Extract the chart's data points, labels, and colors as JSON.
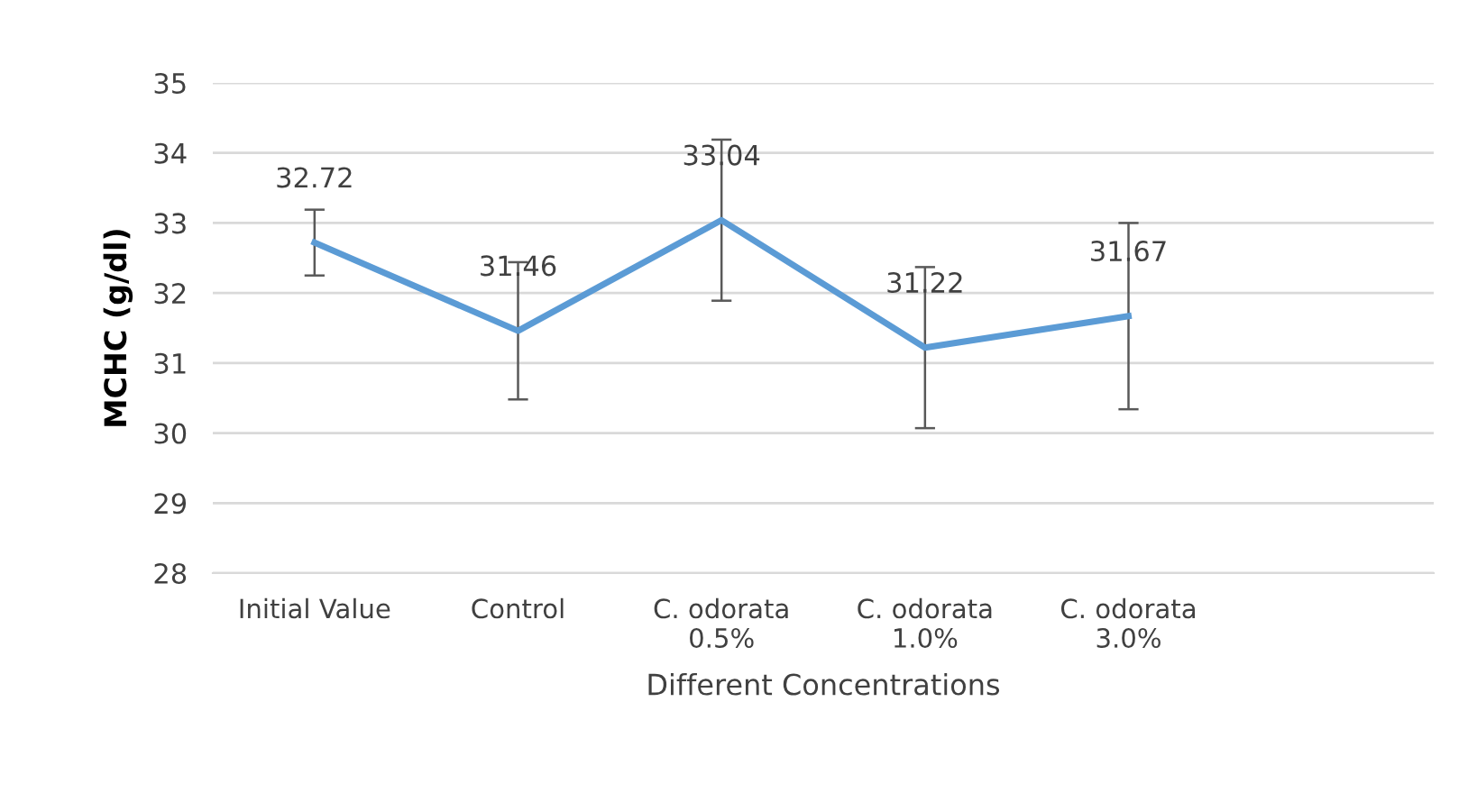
{
  "chart_data": {
    "type": "line",
    "xlabel": "Different Concentrations",
    "ylabel": "MCHC (g/dl)",
    "categories": [
      "Initial Value",
      "Control",
      "C. odorata\n0.5%",
      "C. odorata\n1.0%",
      "C. odorata\n3.0%",
      null
    ],
    "series": [
      {
        "color": "#5b9bd5",
        "values": [
          32.72,
          31.46,
          33.04,
          31.22,
          31.67,
          null
        ],
        "errors": [
          0.47,
          0.98,
          1.15,
          1.15,
          1.33,
          null
        ]
      }
    ],
    "data_labels": true,
    "ylim": [
      28,
      35
    ],
    "yticks": [
      28,
      29,
      30,
      31,
      32,
      33,
      34,
      35
    ],
    "grid": "y",
    "marker": "none",
    "line_style": "solid"
  }
}
